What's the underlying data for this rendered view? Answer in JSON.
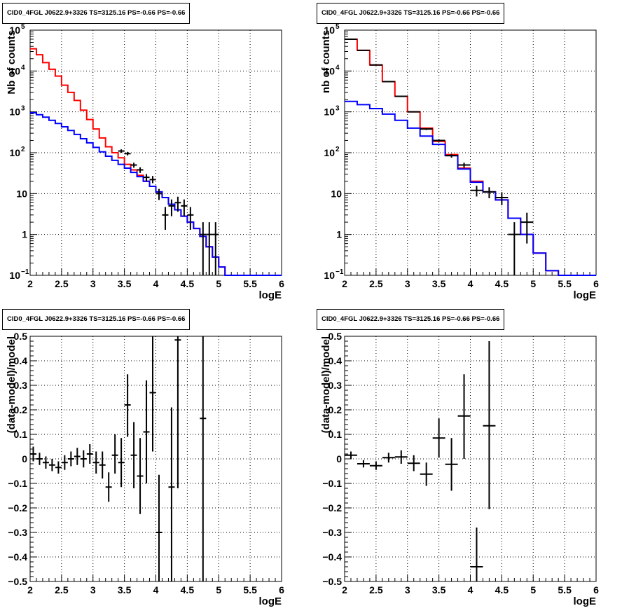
{
  "colors": {
    "total": "#ff0000",
    "background": "#0000ff",
    "data": "#000000"
  },
  "chart_data": [
    {
      "id": "top-left",
      "type": "line",
      "title": "CID0_4FGL J0622.9+3326 TS=3125.16 PS=-0.66 PS=-0.66",
      "xlabel": "logE",
      "ylabel": "Nb of counts",
      "log_y": true,
      "xlim": [
        2,
        6
      ],
      "ylim": [
        0.1,
        100000
      ],
      "grid": true,
      "x_ticks": [
        {
          "v": 2,
          "t": "2"
        },
        {
          "v": 2.5,
          "t": "2.5"
        },
        {
          "v": 3,
          "t": "3"
        },
        {
          "v": 3.5,
          "t": "3.5"
        },
        {
          "v": 4,
          "t": "4"
        },
        {
          "v": 4.5,
          "t": "4.5"
        },
        {
          "v": 5,
          "t": "5"
        },
        {
          "v": 5.5,
          "t": "5.5"
        },
        {
          "v": 6,
          "t": "6"
        }
      ],
      "y_ticks": [
        {
          "v": 0.1,
          "base": "10",
          "exp": "−1"
        },
        {
          "v": 1,
          "base": "1",
          "exp": ""
        },
        {
          "v": 10,
          "base": "10",
          "exp": ""
        },
        {
          "v": 100,
          "base": "10",
          "exp": "2"
        },
        {
          "v": 1000,
          "base": "10",
          "exp": "3"
        },
        {
          "v": 10000,
          "base": "10",
          "exp": "4"
        },
        {
          "v": 100000,
          "base": "10",
          "exp": "5"
        }
      ],
      "bin_edges": [
        2.0,
        2.1,
        2.2,
        2.3,
        2.4,
        2.5,
        2.6,
        2.7,
        2.8,
        2.9,
        3.0,
        3.1,
        3.2,
        3.3,
        3.4,
        3.5,
        3.6,
        3.7,
        3.8,
        3.9,
        4.0,
        4.1,
        4.2,
        4.3,
        4.4,
        4.5,
        4.6,
        4.7,
        4.8,
        4.9,
        5.0,
        5.1,
        5.2,
        5.3,
        5.4,
        5.5,
        5.6,
        5.7,
        5.8,
        5.9,
        6.0
      ],
      "series": [
        {
          "name": "",
          "kind": "step",
          "color": "#ff0000",
          "values": [
            35000,
            25000,
            16000,
            11000,
            7500,
            4500,
            3000,
            1900,
            1100,
            650,
            380,
            230,
            140,
            100,
            75,
            52,
            38,
            28,
            20,
            15,
            11,
            8.0,
            5.5,
            4.0,
            2.8,
            2.0,
            1.4,
            0.9,
            0.5,
            0.28,
            0.16,
            0.1,
            0.1,
            0.1,
            0.1,
            0.1,
            0.1,
            0.1,
            0.1,
            0.1
          ]
        },
        {
          "name": "",
          "kind": "step",
          "color": "#0000ff",
          "values": [
            950,
            850,
            740,
            620,
            520,
            430,
            350,
            280,
            220,
            175,
            135,
            105,
            82,
            65,
            52,
            42,
            33,
            26,
            20,
            15,
            11,
            8.0,
            5.5,
            4.0,
            2.8,
            2.0,
            1.4,
            0.9,
            0.5,
            0.28,
            0.16,
            0.1,
            0.1,
            0.1,
            0.1,
            0.1,
            0.1,
            0.1,
            0.1,
            0.1
          ]
        }
      ],
      "data_points": [
        {
          "x": 3.45,
          "y": 110,
          "ylo": 100,
          "yhi": 121,
          "xw": 0.05
        },
        {
          "x": 3.55,
          "y": 95,
          "ylo": 86,
          "yhi": 105,
          "xw": 0.05
        },
        {
          "x": 3.65,
          "y": 50,
          "ylo": 43,
          "yhi": 57,
          "xw": 0.05
        },
        {
          "x": 3.75,
          "y": 38,
          "ylo": 32,
          "yhi": 44,
          "xw": 0.05
        },
        {
          "x": 3.85,
          "y": 25,
          "ylo": 20,
          "yhi": 30,
          "xw": 0.05
        },
        {
          "x": 3.95,
          "y": 22,
          "ylo": 18,
          "yhi": 27,
          "xw": 0.05
        },
        {
          "x": 4.05,
          "y": 10,
          "ylo": 7,
          "yhi": 13,
          "xw": 0.05
        },
        {
          "x": 4.15,
          "y": 3,
          "ylo": 1.3,
          "yhi": 4.7,
          "xw": 0.05
        },
        {
          "x": 4.25,
          "y": 5,
          "ylo": 2.8,
          "yhi": 7.2,
          "xw": 0.05
        },
        {
          "x": 4.35,
          "y": 6,
          "ylo": 3.6,
          "yhi": 8.4,
          "xw": 0.05
        },
        {
          "x": 4.45,
          "y": 5,
          "ylo": 2.8,
          "yhi": 7.2,
          "xw": 0.05
        },
        {
          "x": 4.55,
          "y": 3,
          "ylo": 1.3,
          "yhi": 4.7,
          "xw": 0.05
        },
        {
          "x": 4.75,
          "y": 1,
          "ylo": 0.1,
          "yhi": 2,
          "xw": 0.05
        },
        {
          "x": 4.85,
          "y": 1,
          "ylo": 0.1,
          "yhi": 2,
          "xw": 0.05
        },
        {
          "x": 4.95,
          "y": 1,
          "ylo": 0.1,
          "yhi": 2,
          "xw": 0.05
        }
      ]
    },
    {
      "id": "top-right",
      "type": "line",
      "title": "CID0_4FGL J0622.9+3326 TS=3125.16 PS=-0.66 PS=-0.66",
      "xlabel": "logE",
      "ylabel": "nb of counts",
      "log_y": true,
      "xlim": [
        2,
        6
      ],
      "ylim": [
        0.1,
        100000
      ],
      "grid": true,
      "x_ticks": [
        {
          "v": 2,
          "t": "2"
        },
        {
          "v": 2.5,
          "t": "2.5"
        },
        {
          "v": 3,
          "t": "3"
        },
        {
          "v": 3.5,
          "t": "3.5"
        },
        {
          "v": 4,
          "t": "4"
        },
        {
          "v": 4.5,
          "t": "4.5"
        },
        {
          "v": 5,
          "t": "5"
        },
        {
          "v": 5.5,
          "t": "5.5"
        },
        {
          "v": 6,
          "t": "6"
        }
      ],
      "y_ticks": [
        {
          "v": 0.1,
          "base": "10",
          "exp": "−1"
        },
        {
          "v": 1,
          "base": "1",
          "exp": ""
        },
        {
          "v": 10,
          "base": "10",
          "exp": ""
        },
        {
          "v": 100,
          "base": "10",
          "exp": "2"
        },
        {
          "v": 1000,
          "base": "10",
          "exp": "3"
        },
        {
          "v": 10000,
          "base": "10",
          "exp": "4"
        },
        {
          "v": 100000,
          "base": "10",
          "exp": "5"
        }
      ],
      "bin_edges": [
        2.0,
        2.2,
        2.4,
        2.6,
        2.8,
        3.0,
        3.2,
        3.4,
        3.6,
        3.8,
        4.0,
        4.2,
        4.4,
        4.6,
        4.8,
        5.0,
        5.2,
        5.4,
        5.6,
        5.8,
        6.0
      ],
      "series": [
        {
          "name": "",
          "kind": "step",
          "color": "#ff0000",
          "values": [
            60000,
            32000,
            14000,
            5500,
            2400,
            1000,
            400,
            190,
            90,
            42,
            20,
            11,
            7,
            2.5,
            1.0,
            0.35,
            0.13,
            0.1,
            0.1,
            0.1
          ]
        },
        {
          "name": "",
          "kind": "step",
          "color": "#0000ff",
          "values": [
            1800,
            1500,
            1200,
            880,
            620,
            400,
            255,
            160,
            85,
            40,
            19,
            11,
            7,
            2.5,
            1.0,
            0.35,
            0.13,
            0.1,
            0.1,
            0.1
          ]
        }
      ],
      "data_points": [
        {
          "x": 2.1,
          "y": 60000,
          "ylo": 59500,
          "yhi": 60500,
          "xw": 0.1
        },
        {
          "x": 2.3,
          "y": 32000,
          "ylo": 31600,
          "yhi": 32400,
          "xw": 0.1
        },
        {
          "x": 2.5,
          "y": 14000,
          "ylo": 13800,
          "yhi": 14200,
          "xw": 0.1
        },
        {
          "x": 2.7,
          "y": 5500,
          "ylo": 5400,
          "yhi": 5600,
          "xw": 0.1
        },
        {
          "x": 2.9,
          "y": 2400,
          "ylo": 2350,
          "yhi": 2450,
          "xw": 0.1
        },
        {
          "x": 3.1,
          "y": 1000,
          "ylo": 970,
          "yhi": 1030,
          "xw": 0.1
        },
        {
          "x": 3.3,
          "y": 380,
          "ylo": 360,
          "yhi": 400,
          "xw": 0.1
        },
        {
          "x": 3.5,
          "y": 200,
          "ylo": 186,
          "yhi": 214,
          "xw": 0.1
        },
        {
          "x": 3.7,
          "y": 85,
          "ylo": 76,
          "yhi": 94,
          "xw": 0.1
        },
        {
          "x": 3.9,
          "y": 50,
          "ylo": 43,
          "yhi": 57,
          "xw": 0.1
        },
        {
          "x": 4.1,
          "y": 12,
          "ylo": 8.5,
          "yhi": 15.5,
          "xw": 0.1
        },
        {
          "x": 4.3,
          "y": 11,
          "ylo": 7.7,
          "yhi": 14.3,
          "xw": 0.1
        },
        {
          "x": 4.5,
          "y": 8,
          "ylo": 5.2,
          "yhi": 10.8,
          "xw": 0.1
        },
        {
          "x": 4.7,
          "y": 1,
          "ylo": 0.1,
          "yhi": 2,
          "xw": 0.1
        },
        {
          "x": 4.9,
          "y": 2,
          "ylo": 0.6,
          "yhi": 3.4,
          "xw": 0.1
        }
      ]
    },
    {
      "id": "bottom-left",
      "type": "scatter",
      "title": "CID0_4FGL J0622.9+3326 TS=3125.16 PS=-0.66 PS=-0.66",
      "xlabel": "logE",
      "ylabel": "(data-model)/model",
      "log_y": false,
      "xlim": [
        2,
        6
      ],
      "ylim": [
        -0.5,
        0.5
      ],
      "grid": true,
      "x_ticks": [
        {
          "v": 2,
          "t": "2"
        },
        {
          "v": 2.5,
          "t": "2.5"
        },
        {
          "v": 3,
          "t": "3"
        },
        {
          "v": 3.5,
          "t": "3.5"
        },
        {
          "v": 4,
          "t": "4"
        },
        {
          "v": 4.5,
          "t": "4.5"
        },
        {
          "v": 5,
          "t": "5"
        },
        {
          "v": 5.5,
          "t": "5.5"
        },
        {
          "v": 6,
          "t": "6"
        }
      ],
      "y_ticks": [
        {
          "v": -0.5,
          "t": "−0.5"
        },
        {
          "v": -0.4,
          "t": "−0.4"
        },
        {
          "v": -0.3,
          "t": "−0.3"
        },
        {
          "v": -0.2,
          "t": "−0.2"
        },
        {
          "v": -0.1,
          "t": "−0.1"
        },
        {
          "v": 0,
          "t": "0"
        },
        {
          "v": 0.1,
          "t": "0.1"
        },
        {
          "v": 0.2,
          "t": "0.2"
        },
        {
          "v": 0.3,
          "t": "0.3"
        },
        {
          "v": 0.4,
          "t": "0.4"
        },
        {
          "v": 0.5,
          "t": "0.5"
        }
      ],
      "series": [],
      "data_points": [
        {
          "x": 2.05,
          "y": 0.02,
          "ylo": -0.01,
          "yhi": 0.05,
          "xw": 0.05
        },
        {
          "x": 2.15,
          "y": 0.0,
          "ylo": -0.025,
          "yhi": 0.025,
          "xw": 0.05
        },
        {
          "x": 2.25,
          "y": -0.015,
          "ylo": -0.04,
          "yhi": 0.01,
          "xw": 0.05
        },
        {
          "x": 2.35,
          "y": -0.025,
          "ylo": -0.05,
          "yhi": 0.0,
          "xw": 0.05
        },
        {
          "x": 2.45,
          "y": -0.035,
          "ylo": -0.06,
          "yhi": -0.01,
          "xw": 0.05
        },
        {
          "x": 2.55,
          "y": -0.015,
          "ylo": -0.045,
          "yhi": 0.015,
          "xw": 0.05
        },
        {
          "x": 2.65,
          "y": 0.0,
          "ylo": -0.03,
          "yhi": 0.03,
          "xw": 0.05
        },
        {
          "x": 2.75,
          "y": 0.01,
          "ylo": -0.025,
          "yhi": 0.045,
          "xw": 0.05
        },
        {
          "x": 2.85,
          "y": 0.0,
          "ylo": -0.035,
          "yhi": 0.035,
          "xw": 0.05
        },
        {
          "x": 2.95,
          "y": 0.02,
          "ylo": -0.02,
          "yhi": 0.06,
          "xw": 0.05
        },
        {
          "x": 3.05,
          "y": -0.015,
          "ylo": -0.06,
          "yhi": 0.03,
          "xw": 0.05
        },
        {
          "x": 3.15,
          "y": -0.025,
          "ylo": -0.08,
          "yhi": 0.03,
          "xw": 0.05
        },
        {
          "x": 3.25,
          "y": -0.115,
          "ylo": -0.175,
          "yhi": -0.055,
          "xw": 0.05
        },
        {
          "x": 3.35,
          "y": 0.015,
          "ylo": -0.06,
          "yhi": 0.1,
          "xw": 0.05
        },
        {
          "x": 3.45,
          "y": -0.015,
          "ylo": -0.115,
          "yhi": 0.085,
          "xw": 0.05
        },
        {
          "x": 3.55,
          "y": 0.22,
          "ylo": 0.09,
          "yhi": 0.345,
          "xw": 0.05
        },
        {
          "x": 3.65,
          "y": 0.015,
          "ylo": -0.12,
          "yhi": 0.15,
          "xw": 0.05
        },
        {
          "x": 3.75,
          "y": -0.07,
          "ylo": -0.225,
          "yhi": 0.085,
          "xw": 0.05
        },
        {
          "x": 3.85,
          "y": 0.11,
          "ylo": -0.1,
          "yhi": 0.32,
          "xw": 0.05
        },
        {
          "x": 3.95,
          "y": 0.27,
          "ylo": 0.03,
          "yhi": 0.5,
          "xw": 0.05
        },
        {
          "x": 4.05,
          "y": -0.3,
          "ylo": -0.5,
          "yhi": -0.065,
          "xw": 0.05
        },
        {
          "x": 4.25,
          "y": -0.115,
          "ylo": -0.5,
          "yhi": 0.21,
          "xw": 0.05
        },
        {
          "x": 4.35,
          "y": 0.485,
          "ylo": -0.12,
          "yhi": 0.5,
          "xw": 0.05
        },
        {
          "x": 4.75,
          "y": 0.165,
          "ylo": -0.5,
          "yhi": 0.5,
          "xw": 0.05
        }
      ]
    },
    {
      "id": "bottom-right",
      "type": "scatter",
      "title": "CID0_4FGL J0622.9+3326 TS=3125.16 PS=-0.66 PS=-0.66",
      "xlabel": "logE",
      "ylabel": "(data-model)/model",
      "log_y": false,
      "xlim": [
        2,
        6
      ],
      "ylim": [
        -0.5,
        0.5
      ],
      "grid": true,
      "x_ticks": [
        {
          "v": 2,
          "t": "2"
        },
        {
          "v": 2.5,
          "t": "2.5"
        },
        {
          "v": 3,
          "t": "3"
        },
        {
          "v": 3.5,
          "t": "3.5"
        },
        {
          "v": 4,
          "t": "4"
        },
        {
          "v": 4.5,
          "t": "4.5"
        },
        {
          "v": 5,
          "t": "5"
        },
        {
          "v": 5.5,
          "t": "5.5"
        },
        {
          "v": 6,
          "t": "6"
        }
      ],
      "y_ticks": [
        {
          "v": -0.5,
          "t": "−0.5"
        },
        {
          "v": -0.4,
          "t": "−0.4"
        },
        {
          "v": -0.3,
          "t": "−0.3"
        },
        {
          "v": -0.2,
          "t": "−0.2"
        },
        {
          "v": -0.1,
          "t": "−0.1"
        },
        {
          "v": 0,
          "t": "0"
        },
        {
          "v": 0.1,
          "t": "0.1"
        },
        {
          "v": 0.2,
          "t": "0.2"
        },
        {
          "v": 0.3,
          "t": "0.3"
        },
        {
          "v": 0.4,
          "t": "0.4"
        },
        {
          "v": 0.5,
          "t": "0.5"
        }
      ],
      "series": [],
      "data_points": [
        {
          "x": 2.1,
          "y": 0.015,
          "ylo": 0.0,
          "yhi": 0.03,
          "xw": 0.1
        },
        {
          "x": 2.3,
          "y": -0.02,
          "ylo": -0.035,
          "yhi": -0.005,
          "xw": 0.1
        },
        {
          "x": 2.5,
          "y": -0.028,
          "ylo": -0.045,
          "yhi": -0.01,
          "xw": 0.1
        },
        {
          "x": 2.7,
          "y": 0.005,
          "ylo": -0.015,
          "yhi": 0.025,
          "xw": 0.1
        },
        {
          "x": 2.9,
          "y": 0.008,
          "ylo": -0.02,
          "yhi": 0.035,
          "xw": 0.1
        },
        {
          "x": 3.1,
          "y": -0.018,
          "ylo": -0.05,
          "yhi": 0.015,
          "xw": 0.1
        },
        {
          "x": 3.3,
          "y": -0.062,
          "ylo": -0.11,
          "yhi": -0.015,
          "xw": 0.1
        },
        {
          "x": 3.5,
          "y": 0.085,
          "ylo": 0.005,
          "yhi": 0.165,
          "xw": 0.1
        },
        {
          "x": 3.7,
          "y": -0.022,
          "ylo": -0.13,
          "yhi": 0.085,
          "xw": 0.1
        },
        {
          "x": 3.9,
          "y": 0.175,
          "ylo": 0.0,
          "yhi": 0.345,
          "xw": 0.1
        },
        {
          "x": 4.1,
          "y": -0.44,
          "ylo": -0.5,
          "yhi": -0.28,
          "xw": 0.1
        },
        {
          "x": 4.3,
          "y": 0.135,
          "ylo": -0.205,
          "yhi": 0.48,
          "xw": 0.1
        }
      ]
    }
  ]
}
